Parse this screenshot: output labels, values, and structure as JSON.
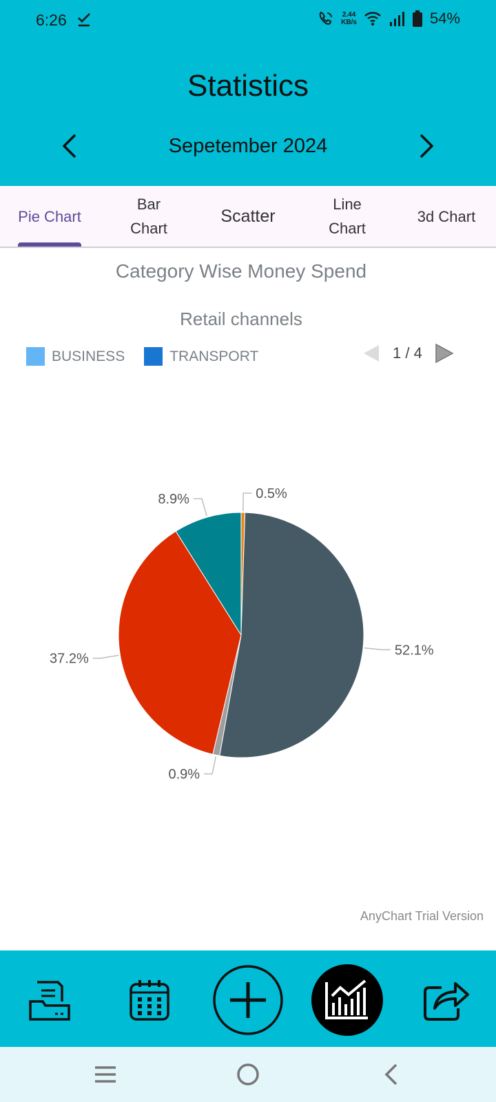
{
  "status_bar": {
    "time": "6:26",
    "speed_value": "2.44",
    "speed_unit": "KB/s",
    "battery": "54%"
  },
  "header": {
    "title": "Statistics",
    "month": "Sepetember 2024"
  },
  "tabs": [
    {
      "label": "Pie Chart",
      "active": true
    },
    {
      "label": "Bar Chart",
      "active": false
    },
    {
      "label": "Scatter",
      "active": false
    },
    {
      "label": "Line Chart",
      "active": false
    },
    {
      "label": "3d Chart",
      "active": false
    }
  ],
  "chart": {
    "heading": "Category Wise Money Spend",
    "legend": [
      {
        "label": "BUSINESS",
        "color": "#64B5F6"
      },
      {
        "label": "TRANSPORT",
        "color": "#1976D2"
      }
    ],
    "pager": "1 / 4",
    "watermark": "AnyChart Trial Version"
  },
  "chart_data": {
    "type": "pie",
    "title": "Retail channels",
    "start_angle_deg": 0,
    "slices": [
      {
        "value": 0.5,
        "label": "0.5%",
        "color": "#E8891E"
      },
      {
        "value": 52.1,
        "label": "52.1%",
        "color": "#455A64"
      },
      {
        "value": 0.9,
        "label": "0.9%",
        "color": "#9E9E9E"
      },
      {
        "value": 37.2,
        "label": "37.2%",
        "color": "#DD2C00"
      },
      {
        "value": 8.9,
        "label": "8.9%",
        "color": "#00838F"
      }
    ],
    "legend_placement": "top-left"
  },
  "bottom_nav": [
    {
      "name": "report-icon"
    },
    {
      "name": "calendar-icon"
    },
    {
      "name": "add-icon"
    },
    {
      "name": "statistics-icon",
      "active": true
    },
    {
      "name": "share-icon"
    }
  ],
  "system_nav": [
    {
      "name": "recents-icon"
    },
    {
      "name": "home-icon"
    },
    {
      "name": "back-icon"
    }
  ]
}
